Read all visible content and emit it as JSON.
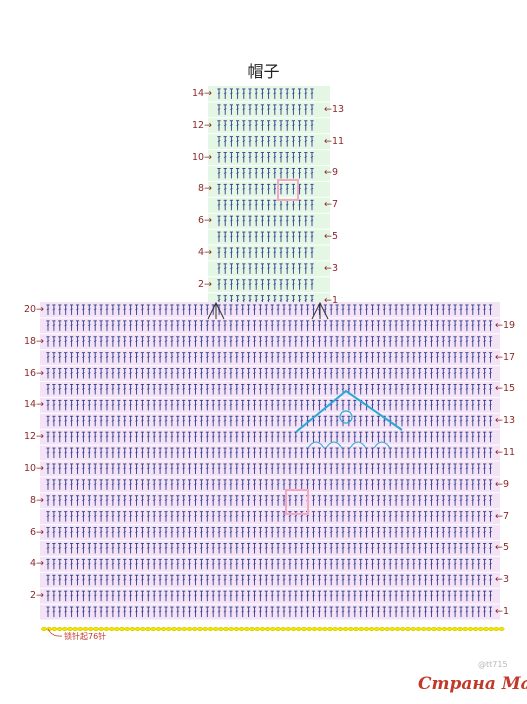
{
  "title": "帽子",
  "hood": {
    "left_labels": [
      "14",
      "12",
      "10",
      "8",
      "6",
      "4",
      "2"
    ],
    "right_labels": [
      "13",
      "11",
      "9",
      "7",
      "5",
      "3",
      "1"
    ]
  },
  "body": {
    "left_labels": [
      "20",
      "18",
      "16",
      "14",
      "12",
      "10",
      "8",
      "6",
      "4",
      "2"
    ],
    "right_labels": [
      "19",
      "17",
      "15",
      "13",
      "11",
      "9",
      "7",
      "5",
      "3",
      "1"
    ]
  },
  "chain_note": "锁针起76针",
  "watermark_small": "@tt715",
  "watermark_brand": "Страна Мам",
  "colors": {
    "hood_fill": "#e4f6e4",
    "body_fill": "#f4e2f6",
    "stitch": "#2e3e8c",
    "label": "#8b2a2a",
    "chain": "#f2e600",
    "accent": "#29a8d8"
  }
}
